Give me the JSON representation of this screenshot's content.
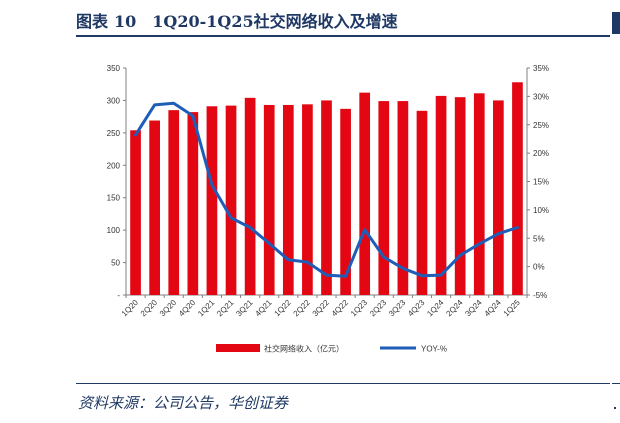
{
  "header": {
    "figure_label": "图表",
    "figure_number": "10",
    "title_text": "1Q20-1Q25社交网络收入及增速"
  },
  "source": {
    "text": "资料来源：公司公告，华创证券"
  },
  "colors": {
    "bar": "#e30613",
    "line": "#1f5eb8",
    "title": "#1f3864",
    "axis": "#808080"
  },
  "chart_data": {
    "type": "bar",
    "categories": [
      "1Q20",
      "2Q20",
      "3Q20",
      "4Q20",
      "1Q21",
      "2Q21",
      "3Q21",
      "4Q21",
      "1Q22",
      "2Q22",
      "3Q22",
      "4Q22",
      "1Q23",
      "2Q23",
      "3Q23",
      "4Q23",
      "1Q24",
      "2Q24",
      "3Q24",
      "4Q24",
      "1Q25"
    ],
    "series": [
      {
        "name": "社交网络收入（亿元）",
        "type": "bar",
        "axis": "left",
        "values": [
          254,
          269,
          285,
          282,
          291,
          292,
          304,
          293,
          293,
          294,
          300,
          287,
          312,
          299,
          299,
          284,
          307,
          305,
          311,
          300,
          328
        ]
      },
      {
        "name": "YOY-%",
        "type": "line",
        "axis": "right",
        "values": [
          23.2,
          28.5,
          28.8,
          26.6,
          14.4,
          8.6,
          6.9,
          4.1,
          1.2,
          0.8,
          -1.5,
          -1.7,
          6.5,
          1.7,
          -0.3,
          -1.6,
          -1.5,
          2.0,
          4.0,
          5.8,
          6.9
        ]
      }
    ],
    "y_left": {
      "ylim": [
        0,
        350
      ],
      "ticks": [
        "-",
        "50",
        "100",
        "150",
        "200",
        "250",
        "300",
        "350"
      ],
      "tick_values": [
        0,
        50,
        100,
        150,
        200,
        250,
        300,
        350
      ]
    },
    "y_right": {
      "ylim": [
        -5,
        35
      ],
      "ticks": [
        "-5%",
        "0%",
        "5%",
        "10%",
        "15%",
        "20%",
        "25%",
        "30%",
        "35%"
      ],
      "tick_values": [
        -5,
        0,
        5,
        10,
        15,
        20,
        25,
        30,
        35
      ]
    },
    "grid": false,
    "legend_position": "bottom",
    "title": "",
    "xlabel": "",
    "ylabel": ""
  }
}
